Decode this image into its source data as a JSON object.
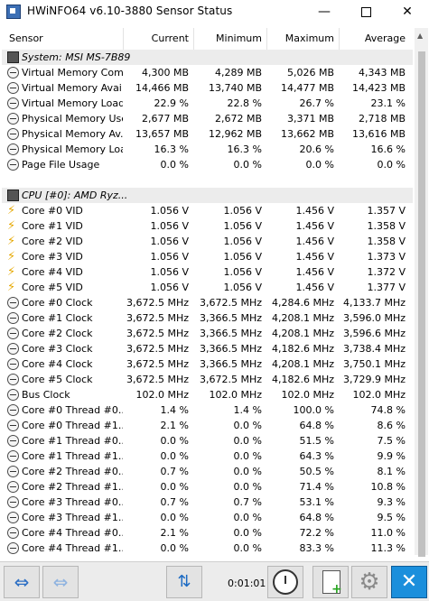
{
  "window": {
    "title": "HWiNFO64 v6.10-3880 Sensor Status",
    "minimize_glyph": "—",
    "maximize_label": "",
    "close_glyph": "✕"
  },
  "columns": {
    "sensor": "Sensor",
    "current": "Current",
    "minimum": "Minimum",
    "maximum": "Maximum",
    "average": "Average"
  },
  "rows": [
    {
      "type": "group",
      "icon": "chip-icon",
      "name": "System: MSI MS-7B89"
    },
    {
      "type": "data",
      "icon": "gauge-icon",
      "name": "Virtual Memory Com...",
      "current": "4,300 MB",
      "minimum": "4,289 MB",
      "maximum": "5,026 MB",
      "average": "4,343 MB"
    },
    {
      "type": "data",
      "icon": "gauge-icon",
      "name": "Virtual Memory Avai...",
      "current": "14,466 MB",
      "minimum": "13,740 MB",
      "maximum": "14,477 MB",
      "average": "14,423 MB"
    },
    {
      "type": "data",
      "icon": "gauge-icon",
      "name": "Virtual Memory Load",
      "current": "22.9 %",
      "minimum": "22.8 %",
      "maximum": "26.7 %",
      "average": "23.1 %"
    },
    {
      "type": "data",
      "icon": "gauge-icon",
      "name": "Physical Memory Used",
      "current": "2,677 MB",
      "minimum": "2,672 MB",
      "maximum": "3,371 MB",
      "average": "2,718 MB"
    },
    {
      "type": "data",
      "icon": "gauge-icon",
      "name": "Physical Memory Av...",
      "current": "13,657 MB",
      "minimum": "12,962 MB",
      "maximum": "13,662 MB",
      "average": "13,616 MB"
    },
    {
      "type": "data",
      "icon": "gauge-icon",
      "name": "Physical Memory Load",
      "current": "16.3 %",
      "minimum": "16.3 %",
      "maximum": "20.6 %",
      "average": "16.6 %"
    },
    {
      "type": "data",
      "icon": "gauge-icon",
      "name": "Page File Usage",
      "current": "0.0 %",
      "minimum": "0.0 %",
      "maximum": "0.0 %",
      "average": "0.0 %"
    },
    {
      "type": "spacer"
    },
    {
      "type": "group",
      "icon": "chip-icon",
      "name": "CPU [#0]: AMD Ryz..."
    },
    {
      "type": "data",
      "icon": "voltage-icon",
      "name": "Core #0 VID",
      "current": "1.056 V",
      "minimum": "1.056 V",
      "maximum": "1.456 V",
      "average": "1.357 V"
    },
    {
      "type": "data",
      "icon": "voltage-icon",
      "name": "Core #1 VID",
      "current": "1.056 V",
      "minimum": "1.056 V",
      "maximum": "1.456 V",
      "average": "1.358 V"
    },
    {
      "type": "data",
      "icon": "voltage-icon",
      "name": "Core #2 VID",
      "current": "1.056 V",
      "minimum": "1.056 V",
      "maximum": "1.456 V",
      "average": "1.358 V"
    },
    {
      "type": "data",
      "icon": "voltage-icon",
      "name": "Core #3 VID",
      "current": "1.056 V",
      "minimum": "1.056 V",
      "maximum": "1.456 V",
      "average": "1.373 V"
    },
    {
      "type": "data",
      "icon": "voltage-icon",
      "name": "Core #4 VID",
      "current": "1.056 V",
      "minimum": "1.056 V",
      "maximum": "1.456 V",
      "average": "1.372 V"
    },
    {
      "type": "data",
      "icon": "voltage-icon",
      "name": "Core #5 VID",
      "current": "1.056 V",
      "minimum": "1.056 V",
      "maximum": "1.456 V",
      "average": "1.377 V"
    },
    {
      "type": "data",
      "icon": "gauge-icon",
      "name": "Core #0 Clock",
      "current": "3,672.5 MHz",
      "minimum": "3,672.5 MHz",
      "maximum": "4,284.6 MHz",
      "average": "4,133.7 MHz"
    },
    {
      "type": "data",
      "icon": "gauge-icon",
      "name": "Core #1 Clock",
      "current": "3,672.5 MHz",
      "minimum": "3,366.5 MHz",
      "maximum": "4,208.1 MHz",
      "average": "3,596.0 MHz"
    },
    {
      "type": "data",
      "icon": "gauge-icon",
      "name": "Core #2 Clock",
      "current": "3,672.5 MHz",
      "minimum": "3,366.5 MHz",
      "maximum": "4,208.1 MHz",
      "average": "3,596.6 MHz"
    },
    {
      "type": "data",
      "icon": "gauge-icon",
      "name": "Core #3 Clock",
      "current": "3,672.5 MHz",
      "minimum": "3,366.5 MHz",
      "maximum": "4,182.6 MHz",
      "average": "3,738.4 MHz"
    },
    {
      "type": "data",
      "icon": "gauge-icon",
      "name": "Core #4 Clock",
      "current": "3,672.5 MHz",
      "minimum": "3,366.5 MHz",
      "maximum": "4,208.1 MHz",
      "average": "3,750.1 MHz"
    },
    {
      "type": "data",
      "icon": "gauge-icon",
      "name": "Core #5 Clock",
      "current": "3,672.5 MHz",
      "minimum": "3,672.5 MHz",
      "maximum": "4,182.6 MHz",
      "average": "3,729.9 MHz"
    },
    {
      "type": "data",
      "icon": "gauge-icon",
      "name": "Bus Clock",
      "current": "102.0 MHz",
      "minimum": "102.0 MHz",
      "maximum": "102.0 MHz",
      "average": "102.0 MHz"
    },
    {
      "type": "data",
      "icon": "gauge-icon",
      "name": "Core #0 Thread #0...",
      "current": "1.4 %",
      "minimum": "1.4 %",
      "maximum": "100.0 %",
      "average": "74.8 %"
    },
    {
      "type": "data",
      "icon": "gauge-icon",
      "name": "Core #0 Thread #1...",
      "current": "2.1 %",
      "minimum": "0.0 %",
      "maximum": "64.8 %",
      "average": "8.6 %"
    },
    {
      "type": "data",
      "icon": "gauge-icon",
      "name": "Core #1 Thread #0...",
      "current": "0.0 %",
      "minimum": "0.0 %",
      "maximum": "51.5 %",
      "average": "7.5 %"
    },
    {
      "type": "data",
      "icon": "gauge-icon",
      "name": "Core #1 Thread #1...",
      "current": "0.0 %",
      "minimum": "0.0 %",
      "maximum": "64.3 %",
      "average": "9.9 %"
    },
    {
      "type": "data",
      "icon": "gauge-icon",
      "name": "Core #2 Thread #0...",
      "current": "0.7 %",
      "minimum": "0.0 %",
      "maximum": "50.5 %",
      "average": "8.1 %"
    },
    {
      "type": "data",
      "icon": "gauge-icon",
      "name": "Core #2 Thread #1...",
      "current": "0.0 %",
      "minimum": "0.0 %",
      "maximum": "71.4 %",
      "average": "10.8 %"
    },
    {
      "type": "data",
      "icon": "gauge-icon",
      "name": "Core #3 Thread #0...",
      "current": "0.7 %",
      "minimum": "0.7 %",
      "maximum": "53.1 %",
      "average": "9.3 %"
    },
    {
      "type": "data",
      "icon": "gauge-icon",
      "name": "Core #3 Thread #1...",
      "current": "0.0 %",
      "minimum": "0.0 %",
      "maximum": "64.8 %",
      "average": "9.5 %"
    },
    {
      "type": "data",
      "icon": "gauge-icon",
      "name": "Core #4 Thread #0...",
      "current": "2.1 %",
      "minimum": "0.0 %",
      "maximum": "72.2 %",
      "average": "11.0 %"
    },
    {
      "type": "data",
      "icon": "gauge-icon",
      "name": "Core #4 Thread #1...",
      "current": "0.0 %",
      "minimum": "0.0 %",
      "maximum": "83.3 %",
      "average": "11.3 %"
    }
  ],
  "toolbar": {
    "timer": "0:01:01",
    "nav_right_glyph": "⇔",
    "nav_left_glyph": "⇔",
    "network_glyph": "⇅",
    "settings_glyph": "⚙",
    "close_glyph": "✕"
  },
  "colors": {
    "accent": "#1b8fdc",
    "group_bg": "#ececec",
    "voltage_icon": "#e6a800"
  }
}
